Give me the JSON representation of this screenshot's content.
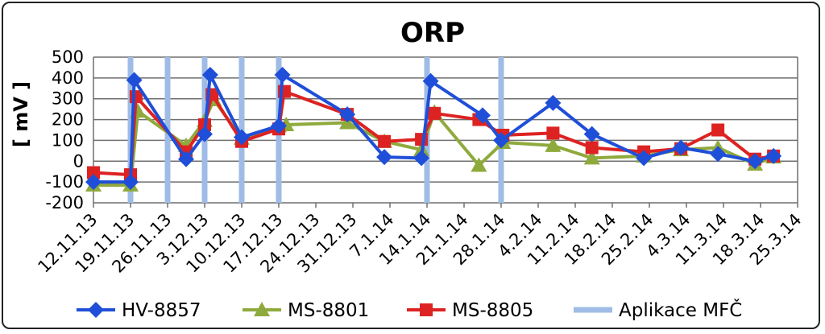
{
  "chart_data": {
    "type": "line",
    "title": "ORP",
    "xlabel": "",
    "ylabel": "[ mV ]",
    "ylim": [
      -200,
      500
    ],
    "yticks": [
      -200,
      -100,
      0,
      100,
      200,
      300,
      400,
      500
    ],
    "grid": true,
    "legend_position": "bottom",
    "categories": [
      "12.11.13",
      "19.11.13",
      "26.11.13",
      "3.12.13",
      "10.12.13",
      "17.12.13",
      "24.12.13",
      "31.12.13",
      "7.1.14",
      "14.1.14",
      "21.1.14",
      "28.1.14",
      "4.2.14",
      "11.2.14",
      "18.2.14",
      "25.2.14",
      "4.3.14",
      "11.3.14",
      "18.3.14",
      "25.3.14"
    ],
    "x_note": "x values are category positions on the date axis (0 = 12.11.13, one unit per tick)",
    "series": [
      {
        "name": "HV-8857",
        "color": "#1f4fd8",
        "marker": "diamond",
        "points": [
          [
            0.0,
            -100
          ],
          [
            1.0,
            -100
          ],
          [
            1.1,
            390
          ],
          [
            2.5,
            10
          ],
          [
            3.0,
            130
          ],
          [
            3.15,
            415
          ],
          [
            4.0,
            115
          ],
          [
            5.0,
            170
          ],
          [
            5.1,
            415
          ],
          [
            6.85,
            225
          ],
          [
            7.85,
            20
          ],
          [
            8.85,
            15
          ],
          [
            9.1,
            385
          ],
          [
            10.5,
            220
          ],
          [
            11.0,
            100
          ],
          [
            12.4,
            280
          ],
          [
            13.45,
            130
          ],
          [
            14.85,
            15
          ],
          [
            15.85,
            65
          ],
          [
            16.85,
            35
          ],
          [
            17.85,
            0
          ],
          [
            18.35,
            25
          ]
        ]
      },
      {
        "name": "MS-8801",
        "color": "#8faa3c",
        "marker": "triangle",
        "points": [
          [
            0.0,
            -115
          ],
          [
            1.0,
            -115
          ],
          [
            1.2,
            240
          ],
          [
            2.5,
            75
          ],
          [
            3.0,
            195
          ],
          [
            3.25,
            295
          ],
          [
            4.0,
            110
          ],
          [
            5.0,
            170
          ],
          [
            5.2,
            175
          ],
          [
            6.85,
            185
          ],
          [
            7.85,
            95
          ],
          [
            8.85,
            55
          ],
          [
            9.2,
            235
          ],
          [
            10.4,
            -20
          ],
          [
            11.05,
            90
          ],
          [
            12.4,
            75
          ],
          [
            13.45,
            15
          ],
          [
            14.85,
            25
          ],
          [
            15.85,
            55
          ],
          [
            16.85,
            65
          ],
          [
            17.85,
            -15
          ],
          [
            18.35,
            20
          ]
        ]
      },
      {
        "name": "MS-8805",
        "color": "#dd2222",
        "marker": "square",
        "points": [
          [
            0.0,
            -55
          ],
          [
            1.0,
            -65
          ],
          [
            1.15,
            310
          ],
          [
            2.5,
            45
          ],
          [
            3.0,
            175
          ],
          [
            3.2,
            320
          ],
          [
            4.0,
            95
          ],
          [
            5.0,
            155
          ],
          [
            5.15,
            335
          ],
          [
            6.85,
            225
          ],
          [
            7.85,
            95
          ],
          [
            8.85,
            105
          ],
          [
            9.2,
            230
          ],
          [
            10.4,
            200
          ],
          [
            11.05,
            125
          ],
          [
            12.4,
            135
          ],
          [
            13.45,
            65
          ],
          [
            14.85,
            45
          ],
          [
            15.85,
            60
          ],
          [
            16.85,
            150
          ],
          [
            17.85,
            10
          ],
          [
            18.35,
            25
          ]
        ]
      },
      {
        "name": "Aplikace MFČ",
        "color": "#9fbce6",
        "marker": "vertical-bar",
        "x_positions": [
          1.0,
          2.0,
          3.0,
          4.0,
          5.0,
          9.0,
          11.0
        ]
      }
    ]
  }
}
